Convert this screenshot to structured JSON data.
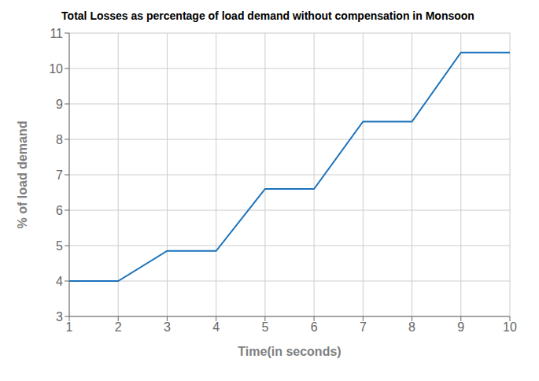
{
  "chart_data": {
    "type": "line",
    "title": "Total Losses as percentage of load demand without compensation in Monsoon",
    "xlabel": "Time(in seconds)",
    "ylabel": "% of load demand",
    "x": [
      1,
      2,
      3,
      4,
      5,
      6,
      7,
      8,
      9,
      10
    ],
    "values": [
      4.0,
      4.0,
      4.85,
      4.85,
      6.6,
      6.6,
      8.5,
      8.5,
      10.45,
      10.45
    ],
    "color": "#1a72bb",
    "xlim": [
      1,
      10
    ],
    "ylim": [
      3,
      11
    ],
    "xticks": [
      1,
      2,
      3,
      4,
      5,
      6,
      7,
      8,
      9,
      10
    ],
    "yticks": [
      3,
      4,
      5,
      6,
      7,
      8,
      9,
      10,
      11
    ],
    "grid": true
  }
}
